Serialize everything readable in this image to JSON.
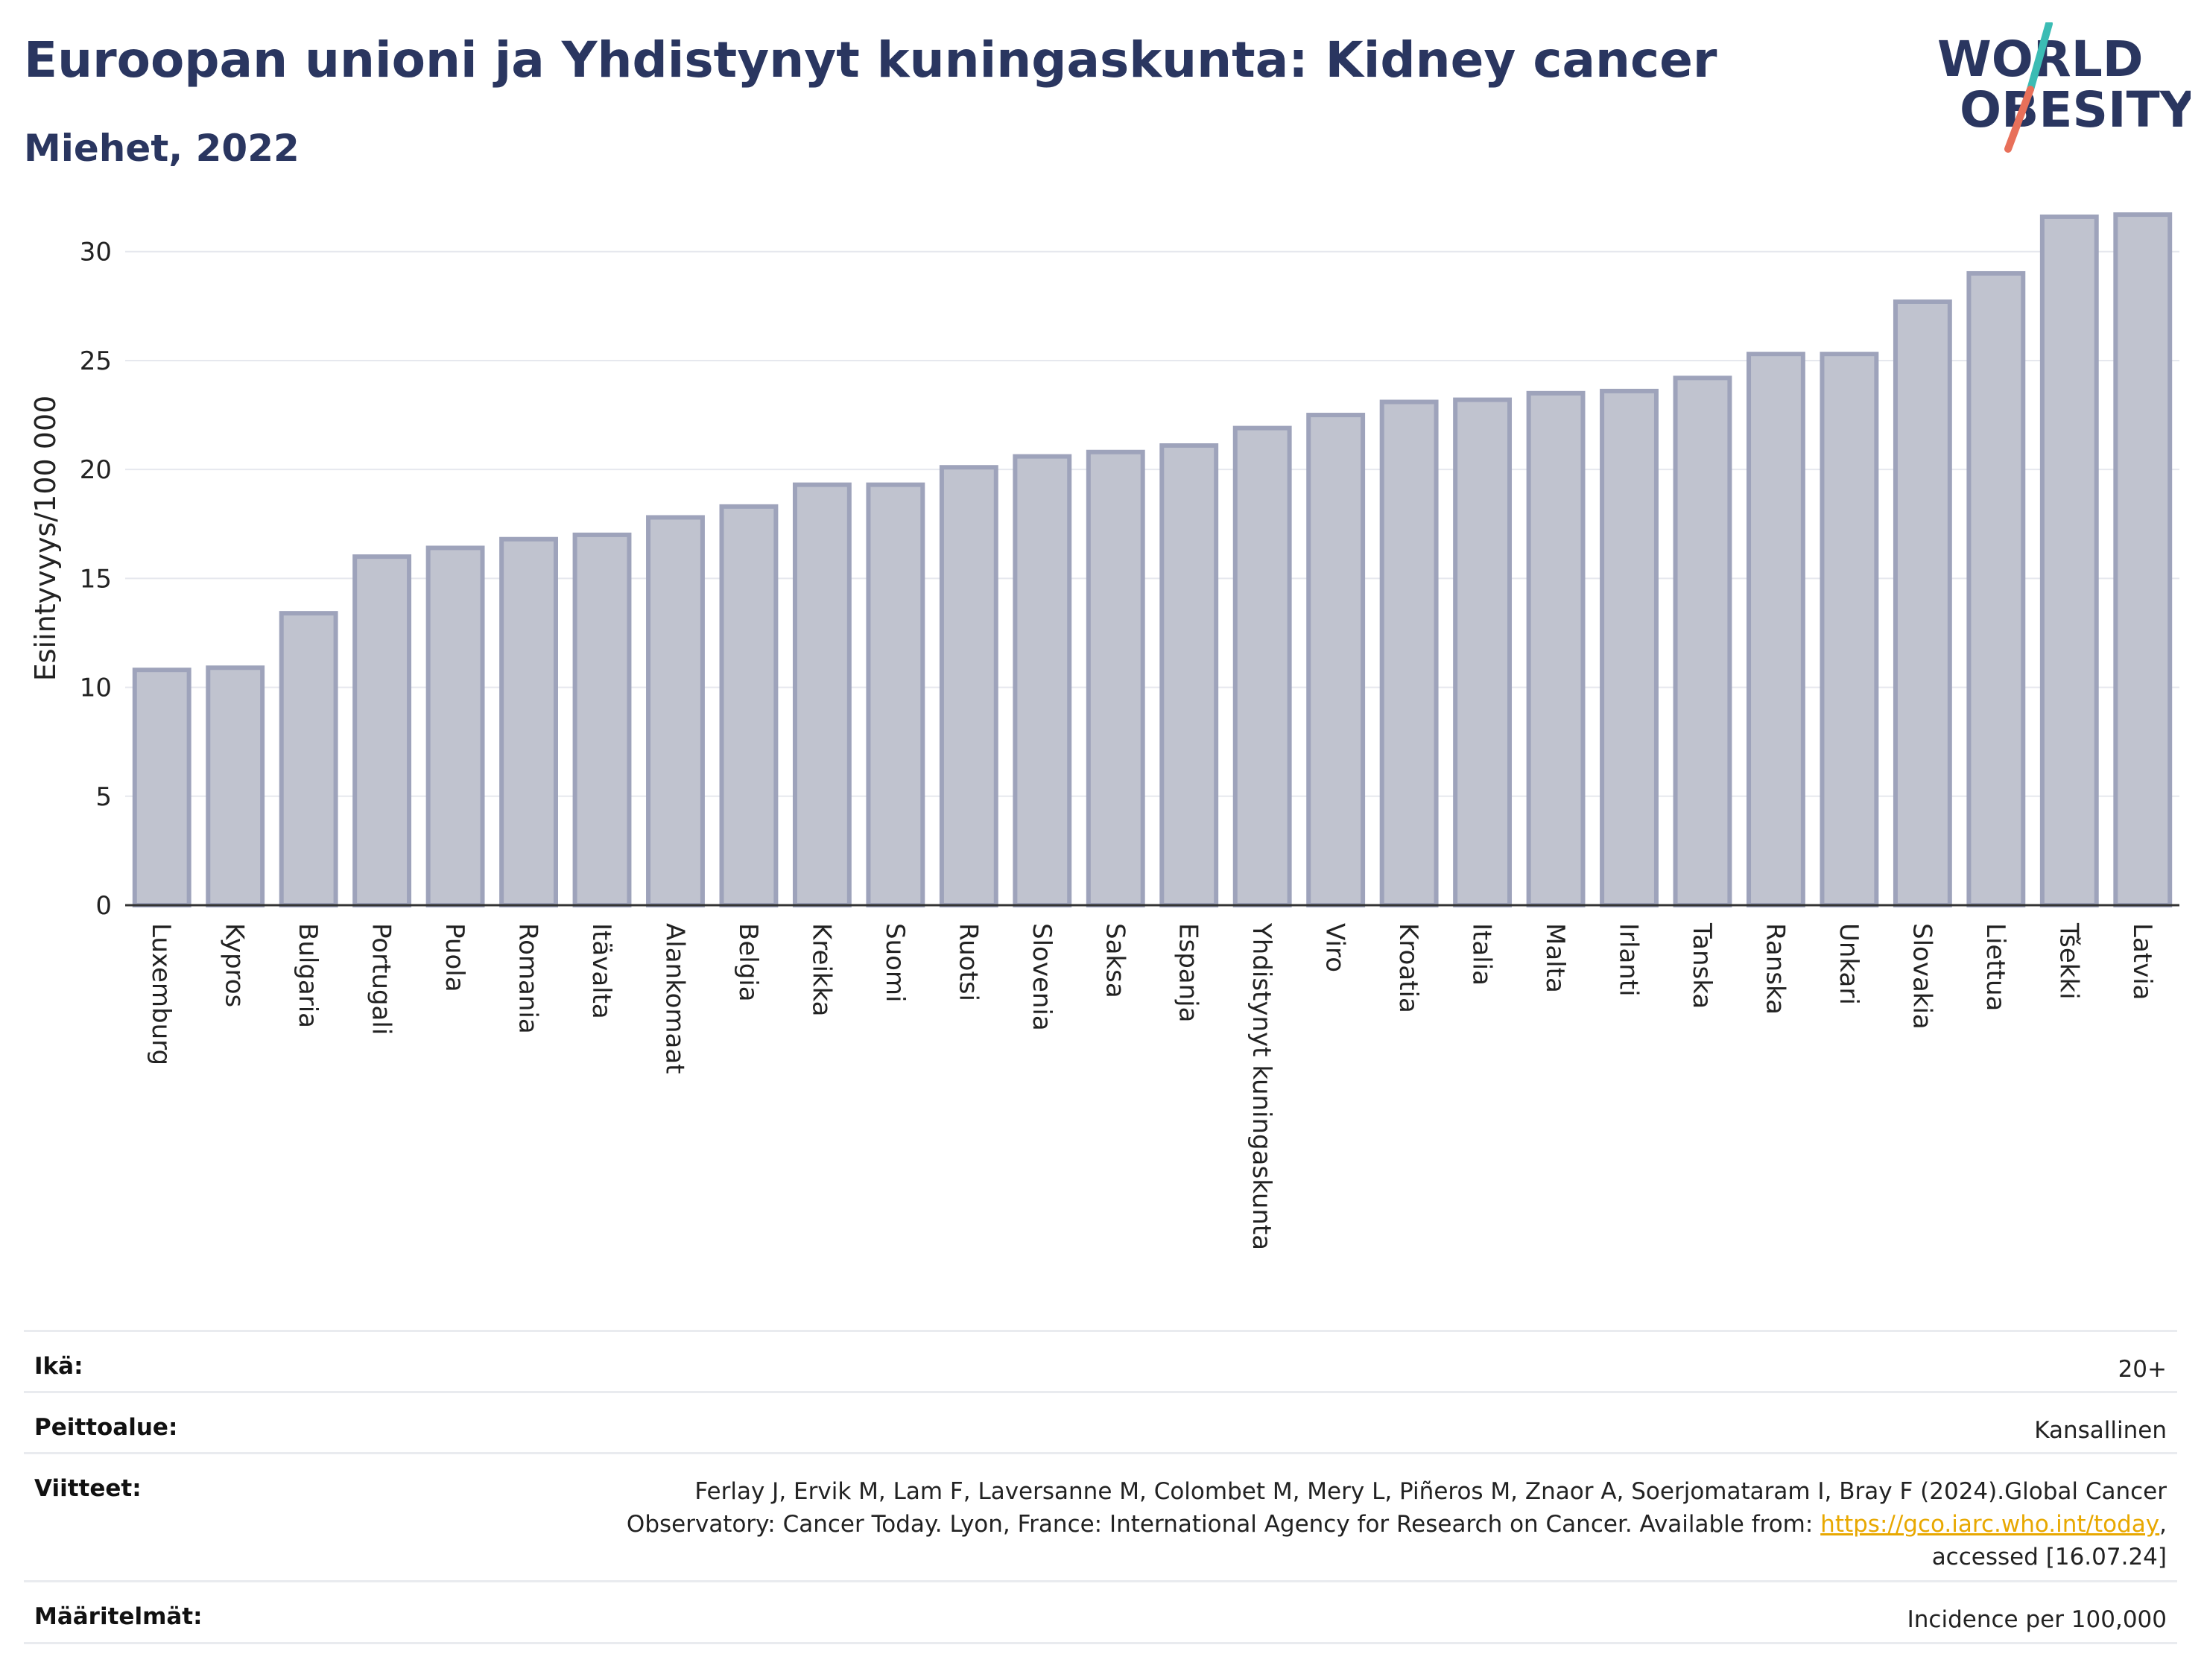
{
  "title": "Euroopan unioni ja Yhdistynyt kuningaskunta: Kidney cancer",
  "subtitle": "Miehet, 2022",
  "logo": {
    "line1": "WORLD",
    "line2": "OBESITY",
    "text_color": "#2a3660",
    "slash_top_color": "#3bbcb4",
    "slash_bottom_color": "#e8705a"
  },
  "chart_data": {
    "type": "bar",
    "ylabel": "Esiintyvyys/100 000",
    "xlabel": "",
    "ylim": [
      0,
      33
    ],
    "yticks": [
      0,
      5,
      10,
      15,
      20,
      25,
      30
    ],
    "grid": true,
    "bar_color": "#c0c3cf",
    "bar_edge_color": "#9ea3bb",
    "categories": [
      "Luxemburg",
      "Kypros",
      "Bulgaria",
      "Portugali",
      "Puola",
      "Romania",
      "Itävalta",
      "Alankomaat",
      "Belgia",
      "Kreikka",
      "Suomi",
      "Ruotsi",
      "Slovenia",
      "Saksa",
      "Espanja",
      "Yhdistynyt kuningaskunta",
      "Viro",
      "Kroatia",
      "Italia",
      "Malta",
      "Irlanti",
      "Tanska",
      "Ranska",
      "Unkari",
      "Slovakia",
      "Liettua",
      "Tšekki",
      "Latvia"
    ],
    "values": [
      10.8,
      10.9,
      13.4,
      16.0,
      16.4,
      16.8,
      17.0,
      17.8,
      18.3,
      19.3,
      19.3,
      20.1,
      20.6,
      20.8,
      21.1,
      21.9,
      22.5,
      23.1,
      23.2,
      23.5,
      23.6,
      24.2,
      25.3,
      25.3,
      27.7,
      29.0,
      31.6,
      31.7
    ]
  },
  "info": {
    "age_label": "Ikä:",
    "age_value": "20+",
    "coverage_label": "Peittoalue:",
    "coverage_value": "Kansallinen",
    "references_label": "Viitteet:",
    "references_line1": "Ferlay J, Ervik M, Lam F, Laversanne M, Colombet M, Mery L, Piñeros M, Znaor A, Soerjomataram I, Bray F (2024).Global Cancer",
    "references_line2": "Observatory: Cancer Today. Lyon, France: International Agency for Research on Cancer. Available from: ",
    "references_link": "https://gco.iarc.who.int/today",
    "references_line2_end": ",",
    "references_line3": "accessed [16.07.24]",
    "definitions_label": "Määritelmät:",
    "definitions_value": "Incidence per 100,000"
  }
}
